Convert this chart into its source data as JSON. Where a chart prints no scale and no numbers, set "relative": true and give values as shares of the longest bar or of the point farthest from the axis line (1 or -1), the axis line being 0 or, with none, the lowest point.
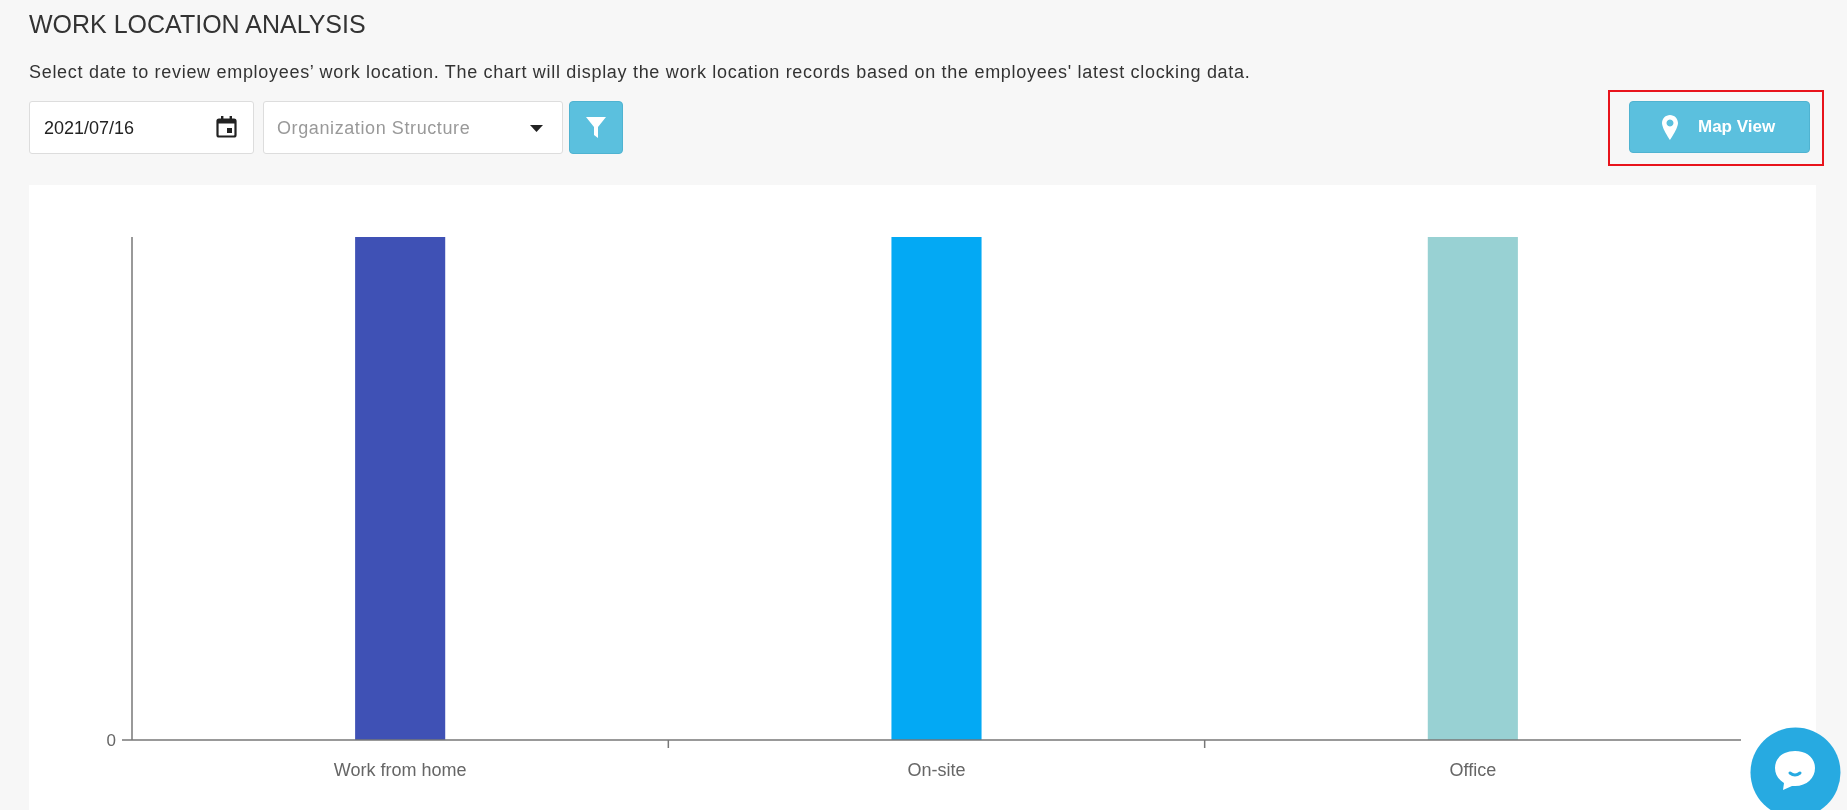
{
  "chart_data": {
    "type": "bar",
    "title": "WORK LOCATION ANALYSIS",
    "subtitle": "Select date to review employees’ work location. The chart will display the work location records based on the employees' latest clocking data.",
    "categories": [
      "Work from home",
      "On-site",
      "Office"
    ],
    "values": [
      1,
      1,
      1
    ],
    "colors": [
      "#3f51b5",
      "#03a9f4",
      "#98d1d3"
    ],
    "relative": true,
    "annotations": [
      "2021/07/16",
      "Organization Structure",
      "Map View",
      "0"
    ]
  }
}
